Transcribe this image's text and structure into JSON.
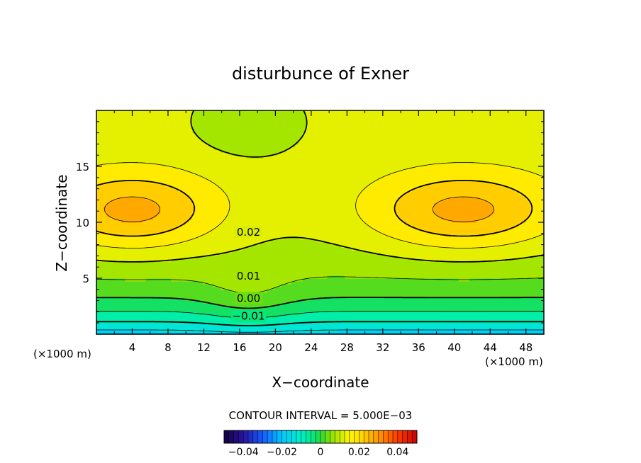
{
  "chart_data": {
    "type": "contour",
    "title": "disturbunce of Exner",
    "xlabel": "X−coordinate",
    "ylabel": "Z−coordinate",
    "x_unit_left": "(×1000 m)",
    "x_unit_right": "(×1000 m)",
    "xlim": [
      0,
      50
    ],
    "ylim": [
      0,
      20
    ],
    "x_ticks": [
      4,
      8,
      12,
      16,
      20,
      24,
      28,
      32,
      36,
      40,
      44,
      48
    ],
    "y_ticks": [
      5,
      10,
      15
    ],
    "contour_interval_label": "CONTOUR INTERVAL = 5.000E−03",
    "contour_interval": 0.005,
    "contour_labels": [
      {
        "text": "0.02",
        "x": 17.0,
        "z": 9.1
      },
      {
        "text": "0.01",
        "x": 17.0,
        "z": 5.2
      },
      {
        "text": "0.00",
        "x": 17.0,
        "z": 3.2
      },
      {
        "text": "−0.01",
        "x": 17.0,
        "z": 1.6
      }
    ],
    "field_description": "Maxima ≈0.03 near z=11 at x≈4 and x≈38–48; minima ≈−0.02 at surface",
    "colorbar": {
      "ticks": [
        "−0.04",
        "−0.02",
        "0",
        "0.02",
        "0.04"
      ],
      "range": [
        -0.05,
        0.05
      ]
    }
  }
}
